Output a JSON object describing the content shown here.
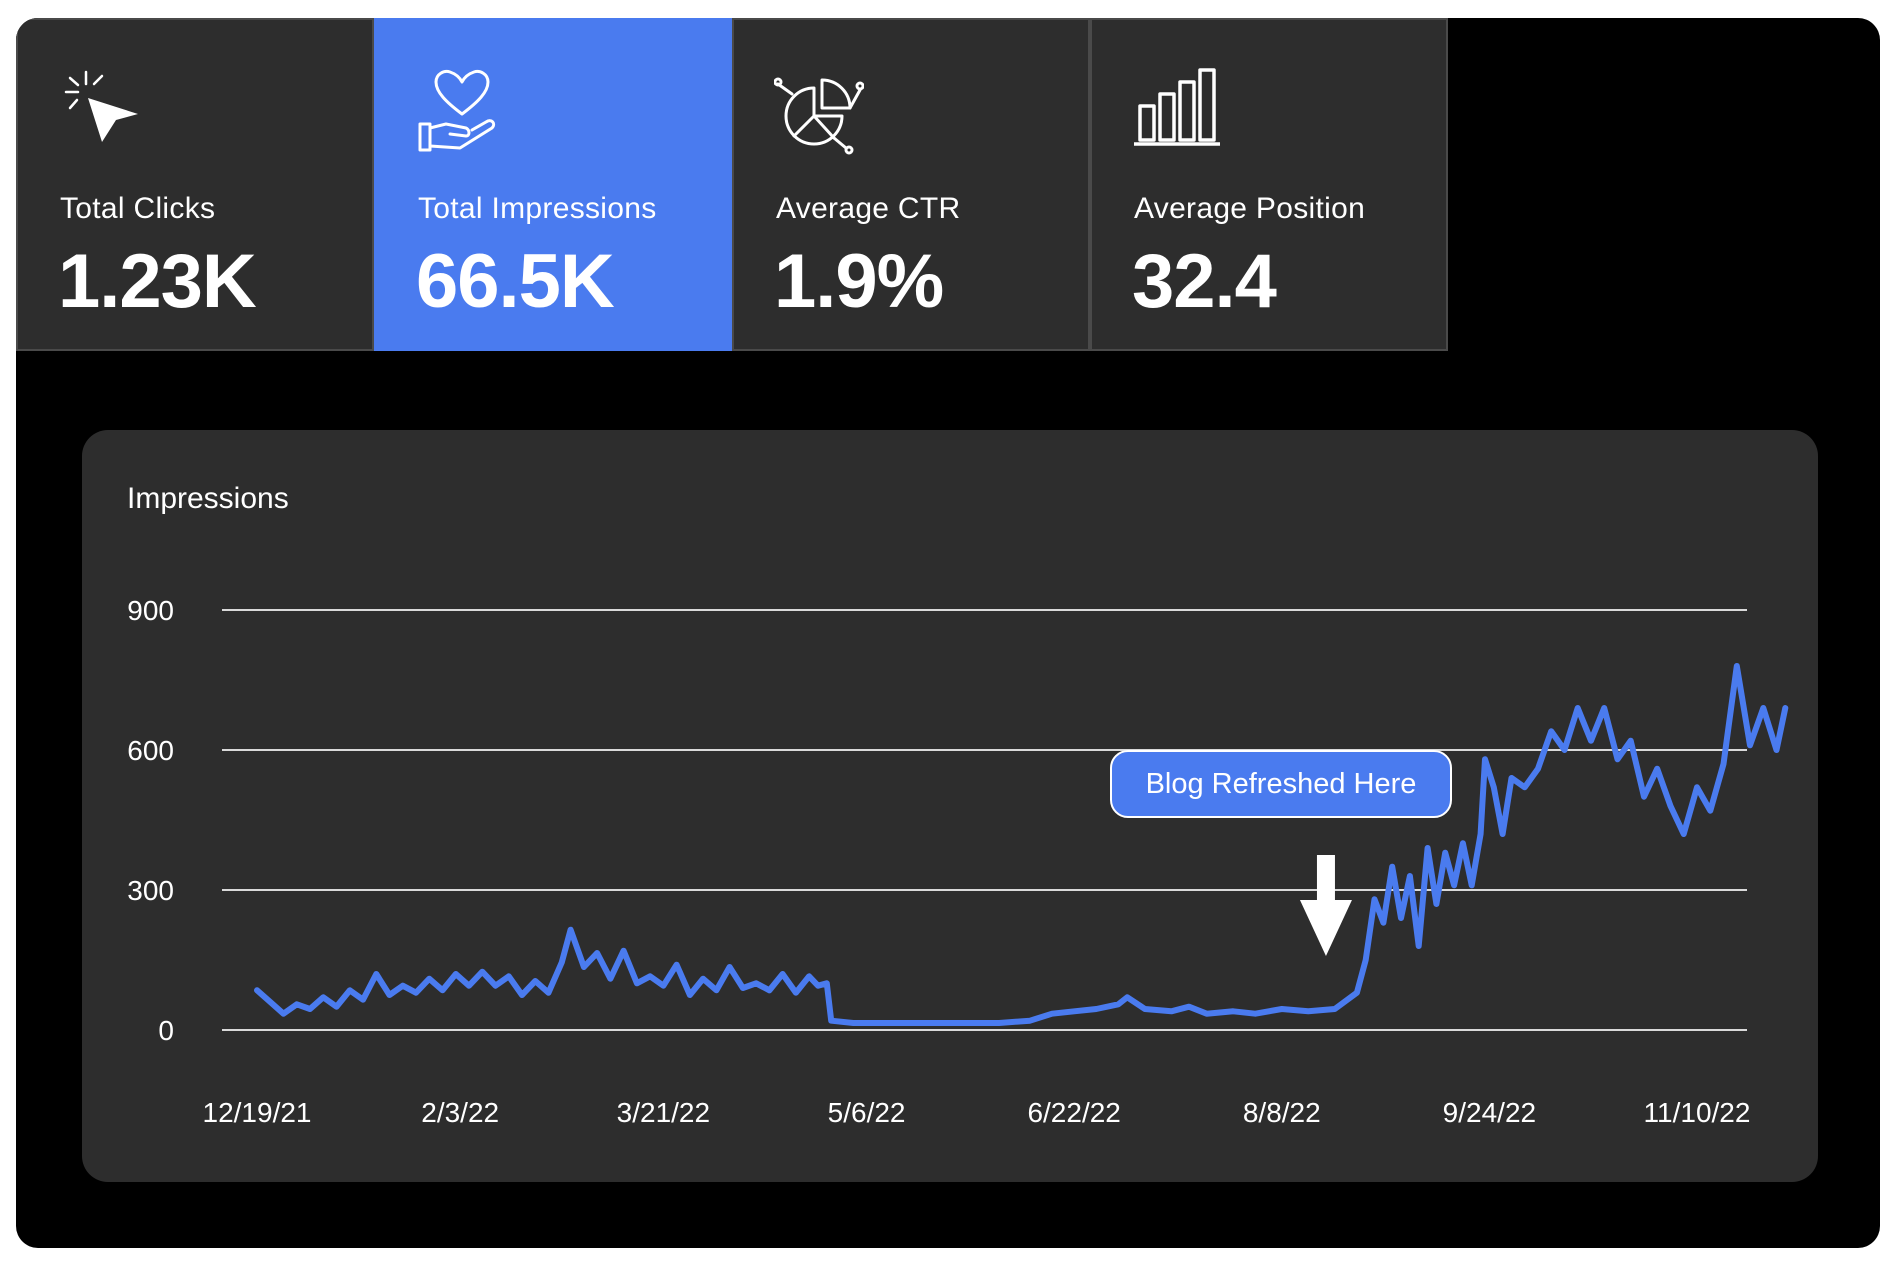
{
  "metrics": [
    {
      "label": "Total Clicks",
      "value": "1.23K",
      "icon": "cursor-click-icon",
      "active": false
    },
    {
      "label": "Total Impressions",
      "value": "66.5K",
      "icon": "heart-hand-icon",
      "active": true
    },
    {
      "label": "Average CTR",
      "value": "1.9%",
      "icon": "pie-chart-icon",
      "active": false
    },
    {
      "label": "Average Position",
      "value": "32.4",
      "icon": "bar-chart-icon",
      "active": false
    }
  ],
  "colors": {
    "accent": "#4a7bef",
    "card_bg": "#2d2d2d",
    "background": "#000000",
    "text": "#ffffff"
  },
  "panel": {
    "title": "Impressions"
  },
  "annotation": {
    "text": "Blog Refreshed Here",
    "x": "8/18/22"
  },
  "chart_data": {
    "type": "line",
    "title": "Impressions",
    "xlabel": "",
    "ylabel": "",
    "ylim": [
      0,
      900
    ],
    "yticks": [
      0,
      300,
      600,
      900
    ],
    "xticks": [
      "12/19/21",
      "2/3/22",
      "3/21/22",
      "5/6/22",
      "6/22/22",
      "8/8/22",
      "9/24/22",
      "11/10/22"
    ],
    "grid": true,
    "series": [
      {
        "color": "#4a7bef",
        "points": [
          [
            "12/19/21",
            85
          ],
          [
            "12/22/21",
            60
          ],
          [
            "12/25/21",
            35
          ],
          [
            "12/28/21",
            55
          ],
          [
            "12/31/21",
            45
          ],
          [
            "1/3/22",
            70
          ],
          [
            "1/6/22",
            50
          ],
          [
            "1/9/22",
            85
          ],
          [
            "1/12/22",
            65
          ],
          [
            "1/15/22",
            120
          ],
          [
            "1/18/22",
            75
          ],
          [
            "1/21/22",
            95
          ],
          [
            "1/24/22",
            80
          ],
          [
            "1/27/22",
            110
          ],
          [
            "1/30/22",
            85
          ],
          [
            "2/2/22",
            120
          ],
          [
            "2/5/22",
            95
          ],
          [
            "2/8/22",
            125
          ],
          [
            "2/11/22",
            95
          ],
          [
            "2/14/22",
            115
          ],
          [
            "2/17/22",
            75
          ],
          [
            "2/20/22",
            105
          ],
          [
            "2/23/22",
            80
          ],
          [
            "2/26/22",
            145
          ],
          [
            "2/28/22",
            215
          ],
          [
            "3/3/22",
            135
          ],
          [
            "3/6/22",
            165
          ],
          [
            "3/9/22",
            110
          ],
          [
            "3/12/22",
            170
          ],
          [
            "3/15/22",
            100
          ],
          [
            "3/18/22",
            115
          ],
          [
            "3/21/22",
            95
          ],
          [
            "3/24/22",
            140
          ],
          [
            "3/27/22",
            75
          ],
          [
            "3/30/22",
            110
          ],
          [
            "4/2/22",
            85
          ],
          [
            "4/5/22",
            135
          ],
          [
            "4/8/22",
            90
          ],
          [
            "4/11/22",
            100
          ],
          [
            "4/14/22",
            85
          ],
          [
            "4/17/22",
            120
          ],
          [
            "4/20/22",
            80
          ],
          [
            "4/23/22",
            115
          ],
          [
            "4/25/22",
            95
          ],
          [
            "4/27/22",
            100
          ],
          [
            "4/28/22",
            20
          ],
          [
            "5/3/22",
            15
          ],
          [
            "5/6/22",
            15
          ],
          [
            "5/20/22",
            15
          ],
          [
            "6/5/22",
            15
          ],
          [
            "6/12/22",
            20
          ],
          [
            "6/17/22",
            35
          ],
          [
            "6/22/22",
            40
          ],
          [
            "6/27/22",
            45
          ],
          [
            "7/2/22",
            55
          ],
          [
            "7/4/22",
            70
          ],
          [
            "7/8/22",
            45
          ],
          [
            "7/14/22",
            40
          ],
          [
            "7/18/22",
            50
          ],
          [
            "7/22/22",
            35
          ],
          [
            "7/28/22",
            40
          ],
          [
            "8/2/22",
            35
          ],
          [
            "8/8/22",
            45
          ],
          [
            "8/14/22",
            40
          ],
          [
            "8/20/22",
            45
          ],
          [
            "8/25/22",
            80
          ],
          [
            "8/27/22",
            150
          ],
          [
            "8/29/22",
            280
          ],
          [
            "8/31/22",
            230
          ],
          [
            "9/2/22",
            350
          ],
          [
            "9/4/22",
            240
          ],
          [
            "9/6/22",
            330
          ],
          [
            "9/8/22",
            180
          ],
          [
            "9/10/22",
            390
          ],
          [
            "9/12/22",
            270
          ],
          [
            "9/14/22",
            380
          ],
          [
            "9/16/22",
            310
          ],
          [
            "9/18/22",
            400
          ],
          [
            "9/20/22",
            310
          ],
          [
            "9/22/22",
            420
          ],
          [
            "9/23/22",
            580
          ],
          [
            "9/25/22",
            520
          ],
          [
            "9/27/22",
            420
          ],
          [
            "9/29/22",
            540
          ],
          [
            "10/2/22",
            520
          ],
          [
            "10/5/22",
            560
          ],
          [
            "10/8/22",
            640
          ],
          [
            "10/11/22",
            600
          ],
          [
            "10/14/22",
            690
          ],
          [
            "10/17/22",
            620
          ],
          [
            "10/20/22",
            690
          ],
          [
            "10/23/22",
            580
          ],
          [
            "10/26/22",
            620
          ],
          [
            "10/29/22",
            500
          ],
          [
            "11/1/22",
            560
          ],
          [
            "11/4/22",
            480
          ],
          [
            "11/7/22",
            420
          ],
          [
            "11/10/22",
            520
          ],
          [
            "11/13/22",
            470
          ],
          [
            "11/16/22",
            570
          ],
          [
            "11/19/22",
            780
          ],
          [
            "11/22/22",
            610
          ],
          [
            "11/25/22",
            690
          ],
          [
            "11/28/22",
            600
          ],
          [
            "11/30/22",
            690
          ]
        ]
      }
    ]
  }
}
